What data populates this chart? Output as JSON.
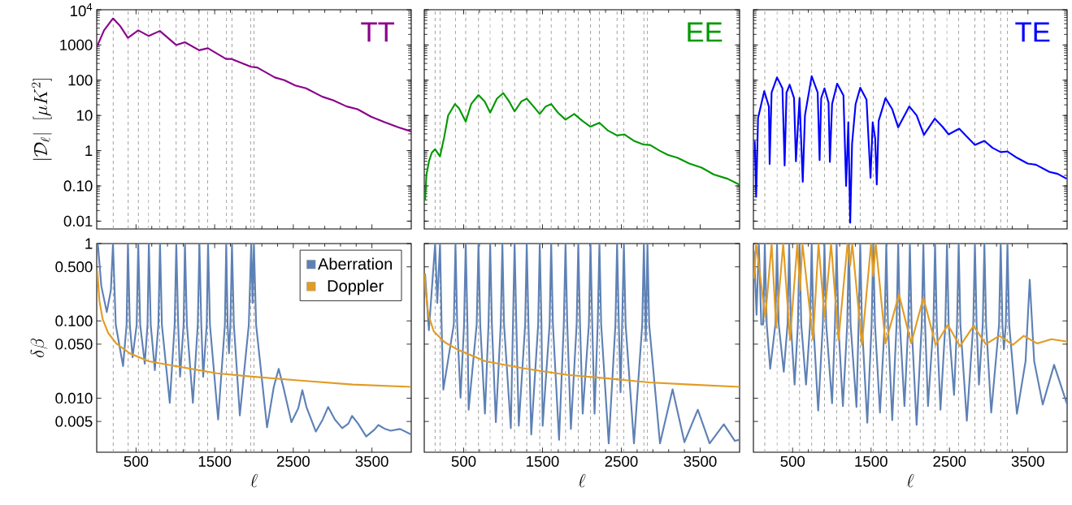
{
  "chart_data": [
    {
      "type": "line",
      "log": "y",
      "xlim": [
        0,
        4000
      ],
      "ylim": [
        0.006,
        10000
      ],
      "xticks": [
        500,
        1500,
        2500,
        3500
      ],
      "yticks": [
        0.01,
        {
          "value": 0.1,
          "label": "0.10"
        },
        1,
        10,
        100,
        1000,
        {
          "value": 10000,
          "label": "10$^{4}$"
        }
      ],
      "tick_labels": "y",
      "ylabel": "|\\mathcal{D}_\\ell|\\;\\;[\\mu K^{2}]",
      "annotations": [
        "TT"
      ],
      "series": [
        {
          "color": "#8b008b",
          "x": [
            7,
            93,
            207,
            300,
            397,
            528,
            662,
            803,
            1010,
            1121,
            1303,
            1414,
            1645,
            1717,
            1962,
            2041,
            2265,
            2386,
            2524,
            2662,
            2869,
            3007,
            3179,
            3317,
            3489,
            3662,
            3834,
            4000
          ],
          "values": [
            940,
            2600,
            5700,
            3400,
            1600,
            2600,
            1800,
            2500,
            1000,
            1200,
            710,
            810,
            400,
            400,
            240,
            230,
            120,
            100,
            71,
            59,
            34,
            27,
            18,
            15,
            9.2,
            6.4,
            4.6,
            3.5
          ]
        }
      ],
      "ref_lines": [
        {
          "axis": "x",
          "value": 210,
          "color": "#999999",
          "line_style": "dashed"
        },
        {
          "axis": "x",
          "value": 400,
          "color": "#999999",
          "line_style": "dashed"
        },
        {
          "axis": "x",
          "value": 530,
          "color": "#999999",
          "line_style": "dashed"
        },
        {
          "axis": "x",
          "value": 660,
          "color": "#999999",
          "line_style": "dashed"
        },
        {
          "axis": "x",
          "value": 800,
          "color": "#999999",
          "line_style": "dashed"
        },
        {
          "axis": "x",
          "value": 1010,
          "color": "#999999",
          "line_style": "dashed"
        },
        {
          "axis": "x",
          "value": 1120,
          "color": "#999999",
          "line_style": "dashed"
        },
        {
          "axis": "x",
          "value": 1300,
          "color": "#999999",
          "line_style": "dashed"
        },
        {
          "axis": "x",
          "value": 1410,
          "color": "#999999",
          "line_style": "dashed"
        },
        {
          "axis": "x",
          "value": 1650,
          "color": "#999999",
          "line_style": "dashed"
        },
        {
          "axis": "x",
          "value": 1720,
          "color": "#999999",
          "line_style": "dashed"
        },
        {
          "axis": "x",
          "value": 1960,
          "color": "#999999",
          "line_style": "dashed"
        },
        {
          "axis": "x",
          "value": 2000,
          "color": "#999999",
          "line_style": "dashed"
        }
      ]
    },
    {
      "type": "line",
      "log": "y",
      "xlim": [
        0,
        4000
      ],
      "ylim": [
        0.006,
        10000
      ],
      "xticks": [
        500,
        1500,
        2500,
        3500
      ],
      "yticks": [
        0.01,
        0.1,
        1,
        10,
        100,
        1000,
        10000
      ],
      "tick_labels": false,
      "annotations": [
        "EE"
      ],
      "series": [
        {
          "color": "#009900",
          "x": [
            10,
            28,
            62,
            96,
            138,
            200,
            251,
            303,
            389,
            440,
            526,
            595,
            688,
            767,
            836,
            922,
            1001,
            1077,
            1146,
            1232,
            1300,
            1386,
            1465,
            1541,
            1610,
            1696,
            1792,
            1902,
            2006,
            2109,
            2222,
            2332,
            2446,
            2539,
            2659,
            2780,
            2866,
            2986,
            3089,
            3210,
            3364,
            3519,
            3674,
            3846,
            3994
          ],
          "values": [
            0.039,
            0.21,
            0.52,
            0.88,
            1.1,
            0.69,
            2.3,
            10,
            21,
            16,
            6.7,
            21,
            38,
            25,
            12,
            30,
            43,
            25,
            13,
            25,
            30,
            18,
            11,
            18,
            21,
            12,
            7.6,
            11,
            7,
            4.8,
            6.2,
            3.7,
            2.7,
            2.9,
            1.9,
            1.5,
            1.45,
            1.0,
            0.76,
            0.63,
            0.43,
            0.33,
            0.21,
            0.16,
            0.11
          ]
        }
      ],
      "ref_lines": [
        {
          "axis": "x",
          "value": 138,
          "color": "#999999",
          "line_style": "dashed"
        },
        {
          "axis": "x",
          "value": 200,
          "color": "#999999",
          "line_style": "dashed"
        },
        {
          "axis": "x",
          "value": 396,
          "color": "#999999",
          "line_style": "dashed"
        },
        {
          "axis": "x",
          "value": 526,
          "color": "#999999",
          "line_style": "dashed"
        },
        {
          "axis": "x",
          "value": 688,
          "color": "#999999",
          "line_style": "dashed"
        },
        {
          "axis": "x",
          "value": 836,
          "color": "#999999",
          "line_style": "dashed"
        },
        {
          "axis": "x",
          "value": 991,
          "color": "#999999",
          "line_style": "dashed"
        },
        {
          "axis": "x",
          "value": 1146,
          "color": "#999999",
          "line_style": "dashed"
        },
        {
          "axis": "x",
          "value": 1300,
          "color": "#999999",
          "line_style": "dashed"
        },
        {
          "axis": "x",
          "value": 1465,
          "color": "#999999",
          "line_style": "dashed"
        },
        {
          "axis": "x",
          "value": 1610,
          "color": "#999999",
          "line_style": "dashed"
        },
        {
          "axis": "x",
          "value": 1792,
          "color": "#999999",
          "line_style": "dashed"
        },
        {
          "axis": "x",
          "value": 1954,
          "color": "#999999",
          "line_style": "dashed"
        },
        {
          "axis": "x",
          "value": 2109,
          "color": "#999999",
          "line_style": "dashed"
        },
        {
          "axis": "x",
          "value": 2222,
          "color": "#999999",
          "line_style": "dashed"
        },
        {
          "axis": "x",
          "value": 2446,
          "color": "#999999",
          "line_style": "dashed"
        },
        {
          "axis": "x",
          "value": 2532,
          "color": "#999999",
          "line_style": "dashed"
        },
        {
          "axis": "x",
          "value": 2786,
          "color": "#999999",
          "line_style": "dashed"
        },
        {
          "axis": "x",
          "value": 2831,
          "color": "#999999",
          "line_style": "dashed"
        }
      ]
    },
    {
      "type": "line",
      "log": "y",
      "xlim": [
        0,
        4000
      ],
      "ylim": [
        0.006,
        10000
      ],
      "xticks": [
        500,
        1500,
        2500,
        3500
      ],
      "yticks": [
        0.01,
        0.1,
        1,
        10,
        100,
        1000,
        10000
      ],
      "tick_labels": false,
      "annotations": [
        "TE"
      ],
      "series": [
        {
          "color": "#0000ff",
          "x": [
            17,
            35,
            59,
            138,
            197,
            207,
            232,
            301,
            370,
            398,
            422,
            463,
            518,
            542,
            588,
            629,
            657,
            743,
            819,
            844,
            864,
            906,
            958,
            975,
            1003,
            1068,
            1148,
            1182,
            1210,
            1234,
            1258,
            1303,
            1362,
            1442,
            1493,
            1521,
            1552,
            1573,
            1597,
            1684,
            1770,
            1846,
            1988,
            2081,
            2174,
            2313,
            2410,
            2489,
            2624,
            2721,
            2824,
            2945,
            3049,
            3153,
            3239,
            3360,
            3498,
            3602,
            3775,
            3879,
            3993
          ],
          "values": [
            1.9,
            0.049,
            8.4,
            49,
            18,
            0.42,
            45,
            120,
            59,
            0.38,
            45,
            74,
            31,
            0.5,
            31,
            0.13,
            10,
            130,
            45,
            0.54,
            31,
            59,
            23,
            0.48,
            21,
            80,
            37,
            0.1,
            6.4,
            0.009,
            1.6,
            21,
            61,
            28,
            0.17,
            6.4,
            2.3,
            0.11,
            7,
            31,
            15,
            4.6,
            18,
            10,
            2.8,
            8.1,
            4.8,
            2.9,
            4.2,
            2.5,
            1.45,
            1.9,
            1.2,
            0.91,
            0.95,
            0.63,
            0.43,
            0.4,
            0.25,
            0.22,
            0.16
          ]
        }
      ],
      "ref_lines": [
        {
          "axis": "x",
          "value": 145,
          "color": "#999999",
          "line_style": "dashed"
        },
        {
          "axis": "x",
          "value": 301,
          "color": "#999999",
          "line_style": "dashed"
        },
        {
          "axis": "x",
          "value": 456,
          "color": "#999999",
          "line_style": "dashed"
        },
        {
          "axis": "x",
          "value": 588,
          "color": "#999999",
          "line_style": "dashed"
        },
        {
          "axis": "x",
          "value": 743,
          "color": "#999999",
          "line_style": "dashed"
        },
        {
          "axis": "x",
          "value": 906,
          "color": "#999999",
          "line_style": "dashed"
        },
        {
          "axis": "x",
          "value": 1061,
          "color": "#999999",
          "line_style": "dashed"
        },
        {
          "axis": "x",
          "value": 1217,
          "color": "#999999",
          "line_style": "dashed"
        },
        {
          "axis": "x",
          "value": 1362,
          "color": "#999999",
          "line_style": "dashed"
        },
        {
          "axis": "x",
          "value": 1528,
          "color": "#999999",
          "line_style": "dashed"
        },
        {
          "axis": "x",
          "value": 1694,
          "color": "#999999",
          "line_style": "dashed"
        },
        {
          "axis": "x",
          "value": 1846,
          "color": "#999999",
          "line_style": "dashed"
        },
        {
          "axis": "x",
          "value": 1995,
          "color": "#999999",
          "line_style": "dashed"
        },
        {
          "axis": "x",
          "value": 2167,
          "color": "#999999",
          "line_style": "dashed"
        },
        {
          "axis": "x",
          "value": 2316,
          "color": "#999999",
          "line_style": "dashed"
        },
        {
          "axis": "x",
          "value": 2468,
          "color": "#999999",
          "line_style": "dashed"
        },
        {
          "axis": "x",
          "value": 2617,
          "color": "#999999",
          "line_style": "dashed"
        },
        {
          "axis": "x",
          "value": 2824,
          "color": "#999999",
          "line_style": "dashed"
        },
        {
          "axis": "x",
          "value": 2945,
          "color": "#999999",
          "line_style": "dashed"
        },
        {
          "axis": "x",
          "value": 3153,
          "color": "#999999",
          "line_style": "dashed"
        },
        {
          "axis": "x",
          "value": 3239,
          "color": "#999999",
          "line_style": "dashed"
        }
      ]
    },
    {
      "type": "line",
      "log": "y",
      "xlim": [
        0,
        4000
      ],
      "ylim": [
        0.002,
        1
      ],
      "xticks": [
        500,
        1500,
        2500,
        3500
      ],
      "yticks": [
        0.005,
        {
          "value": 0.01,
          "label": "0.010"
        },
        {
          "value": 0.05,
          "label": "0.050"
        },
        {
          "value": 0.1,
          "label": "0.100"
        },
        {
          "value": 0.5,
          "label": "0.500"
        },
        1
      ],
      "xlabel": "\\ell",
      "ylabel": "\\delta\\beta",
      "legend": "top right",
      "series": [
        {
          "name": "Aberration",
          "color": "#5e81b5",
          "x": [
            14,
            59,
            128,
            180,
            207,
            242,
            335,
            380,
            397,
            421,
            456,
            508,
            528,
            553,
            611,
            646,
            663,
            687,
            739,
            784,
            805,
            829,
            929,
            991,
            1012,
            1036,
            1060,
            1105,
            1122,
            1147,
            1223,
            1285,
            1306,
            1330,
            1354,
            1399,
            1416,
            1440,
            1544,
            1630,
            1647,
            1665,
            1682,
            1700,
            1720,
            1744,
            1820,
            1934,
            1965,
            1982,
            1999,
            2027,
            2166,
            2252,
            2314,
            2373,
            2476,
            2563,
            2615,
            2667,
            2787,
            2874,
            2943,
            3029,
            3122,
            3202,
            3247,
            3323,
            3427,
            3530,
            3582,
            3668,
            3737,
            3858,
            3996
          ],
          "values": [
            1,
            0.28,
            0.13,
            0.25,
            1,
            0.089,
            0.026,
            0.089,
            1,
            0.089,
            0.034,
            0.089,
            1,
            0.089,
            0.028,
            0.089,
            1,
            0.089,
            0.023,
            0.089,
            1,
            0.089,
            0.0087,
            0.089,
            1,
            0.089,
            0.019,
            0.089,
            1,
            0.089,
            0.0087,
            0.089,
            1,
            0.089,
            0.019,
            0.089,
            1,
            0.089,
            0.0053,
            0.089,
            1,
            0.089,
            0.038,
            0.089,
            1,
            0.089,
            0.006,
            0.089,
            1,
            0.17,
            1,
            0.089,
            0.0042,
            0.014,
            0.024,
            0.014,
            0.0049,
            0.0074,
            0.0127,
            0.0077,
            0.0037,
            0.0053,
            0.0077,
            0.0053,
            0.0041,
            0.0047,
            0.0059,
            0.0047,
            0.0032,
            0.0039,
            0.0045,
            0.004,
            0.0038,
            0.004,
            0.0034
          ]
        },
        {
          "name": "Doppler",
          "color": "#e19c24",
          "x": [
            7,
            35,
            76,
            145,
            249,
            421,
            663,
            1008,
            1526,
            1975,
            2563,
            3253,
            3996
          ],
          "values": [
            0.45,
            0.18,
            0.105,
            0.07,
            0.051,
            0.038,
            0.03,
            0.026,
            0.021,
            0.019,
            0.017,
            0.015,
            0.014
          ]
        }
      ],
      "ref_lines": [
        {
          "axis": "x",
          "value": 210,
          "color": "#999999",
          "line_style": "dashed"
        },
        {
          "axis": "x",
          "value": 400,
          "color": "#999999",
          "line_style": "dashed"
        },
        {
          "axis": "x",
          "value": 530,
          "color": "#999999",
          "line_style": "dashed"
        },
        {
          "axis": "x",
          "value": 660,
          "color": "#999999",
          "line_style": "dashed"
        },
        {
          "axis": "x",
          "value": 800,
          "color": "#999999",
          "line_style": "dashed"
        },
        {
          "axis": "x",
          "value": 1010,
          "color": "#999999",
          "line_style": "dashed"
        },
        {
          "axis": "x",
          "value": 1120,
          "color": "#999999",
          "line_style": "dashed"
        },
        {
          "axis": "x",
          "value": 1300,
          "color": "#999999",
          "line_style": "dashed"
        },
        {
          "axis": "x",
          "value": 1410,
          "color": "#999999",
          "line_style": "dashed"
        },
        {
          "axis": "x",
          "value": 1650,
          "color": "#999999",
          "line_style": "dashed"
        },
        {
          "axis": "x",
          "value": 1720,
          "color": "#999999",
          "line_style": "dashed"
        },
        {
          "axis": "x",
          "value": 1960,
          "color": "#999999",
          "line_style": "dashed"
        },
        {
          "axis": "x",
          "value": 2000,
          "color": "#999999",
          "line_style": "dashed"
        }
      ]
    },
    {
      "type": "line",
      "log": "y",
      "xlim": [
        0,
        4000
      ],
      "ylim": [
        0.002,
        1
      ],
      "xticks": [
        500,
        1500,
        2500,
        3500
      ],
      "yticks": [
        0.005,
        0.01,
        0.05,
        0.1,
        0.5,
        1
      ],
      "tick_labels": "x",
      "xlabel": "\\ell",
      "series": [
        {
          "color": "#5e81b5",
          "x": [
            10,
            59,
            138,
            165,
            200,
            220,
            242,
            375,
            396,
            418,
            460,
            505,
            526,
            548,
            563,
            665,
            688,
            710,
            770,
            815,
            836,
            858,
            908,
            970,
            991,
            1012,
            1098,
            1125,
            1146,
            1168,
            1199,
            1280,
            1300,
            1322,
            1357,
            1445,
            1465,
            1487,
            1502,
            1590,
            1610,
            1632,
            1710,
            1770,
            1792,
            1814,
            1860,
            1933,
            1954,
            1976,
            2010,
            2088,
            2109,
            2131,
            2160,
            2200,
            2222,
            2244,
            2340,
            2425,
            2446,
            2468,
            2490,
            2510,
            2532,
            2554,
            2660,
            2765,
            2786,
            2810,
            2831,
            2853,
            2990,
            3150,
            3300,
            3470,
            3620,
            3800,
            3940,
            4000
          ],
          "values": [
            0.41,
            0.076,
            1,
            0.17,
            1,
            0.09,
            0.0129,
            0.09,
            1,
            0.09,
            0.0101,
            0.09,
            1,
            0.09,
            0.0071,
            0.09,
            1,
            0.09,
            0.0063,
            0.09,
            1,
            0.09,
            0.0049,
            0.09,
            1,
            0.09,
            0.0041,
            0.09,
            1,
            0.09,
            0.0044,
            0.09,
            1,
            0.09,
            0.0034,
            0.09,
            1,
            0.09,
            0.0044,
            0.09,
            1,
            0.09,
            0.0029,
            0.09,
            1,
            0.09,
            0.004,
            0.09,
            1,
            0.09,
            0.0063,
            0.09,
            1,
            0.09,
            0.0063,
            0.09,
            1,
            0.09,
            0.0026,
            0.09,
            1,
            0.09,
            0.0119,
            0.09,
            1,
            0.09,
            0.0026,
            0.09,
            1,
            0.055,
            1,
            0.09,
            0.0026,
            0.013,
            0.0027,
            0.0071,
            0.0026,
            0.0046,
            0.0028,
            0.0029
          ]
        },
        {
          "color": "#e19c24",
          "x": [
            3,
            17,
            52,
            121,
            259,
            432,
            777,
            1295,
            1813,
            2331,
            2850,
            3368,
            4000
          ],
          "values": [
            0.41,
            0.25,
            0.12,
            0.073,
            0.053,
            0.042,
            0.03,
            0.024,
            0.02,
            0.018,
            0.016,
            0.015,
            0.014
          ]
        }
      ],
      "ref_lines": [
        {
          "axis": "x",
          "value": 138,
          "color": "#999999",
          "line_style": "dashed"
        },
        {
          "axis": "x",
          "value": 200,
          "color": "#999999",
          "line_style": "dashed"
        },
        {
          "axis": "x",
          "value": 396,
          "color": "#999999",
          "line_style": "dashed"
        },
        {
          "axis": "x",
          "value": 526,
          "color": "#999999",
          "line_style": "dashed"
        },
        {
          "axis": "x",
          "value": 688,
          "color": "#999999",
          "line_style": "dashed"
        },
        {
          "axis": "x",
          "value": 836,
          "color": "#999999",
          "line_style": "dashed"
        },
        {
          "axis": "x",
          "value": 991,
          "color": "#999999",
          "line_style": "dashed"
        },
        {
          "axis": "x",
          "value": 1146,
          "color": "#999999",
          "line_style": "dashed"
        },
        {
          "axis": "x",
          "value": 1300,
          "color": "#999999",
          "line_style": "dashed"
        },
        {
          "axis": "x",
          "value": 1465,
          "color": "#999999",
          "line_style": "dashed"
        },
        {
          "axis": "x",
          "value": 1610,
          "color": "#999999",
          "line_style": "dashed"
        },
        {
          "axis": "x",
          "value": 1792,
          "color": "#999999",
          "line_style": "dashed"
        },
        {
          "axis": "x",
          "value": 1954,
          "color": "#999999",
          "line_style": "dashed"
        },
        {
          "axis": "x",
          "value": 2109,
          "color": "#999999",
          "line_style": "dashed"
        },
        {
          "axis": "x",
          "value": 2222,
          "color": "#999999",
          "line_style": "dashed"
        },
        {
          "axis": "x",
          "value": 2446,
          "color": "#999999",
          "line_style": "dashed"
        },
        {
          "axis": "x",
          "value": 2532,
          "color": "#999999",
          "line_style": "dashed"
        },
        {
          "axis": "x",
          "value": 2786,
          "color": "#999999",
          "line_style": "dashed"
        },
        {
          "axis": "x",
          "value": 2831,
          "color": "#999999",
          "line_style": "dashed"
        }
      ]
    },
    {
      "type": "line",
      "log": "y",
      "xlim": [
        0,
        4000
      ],
      "ylim": [
        0.002,
        1
      ],
      "xticks": [
        500,
        1500,
        2500,
        3500
      ],
      "yticks": [
        0.005,
        0.01,
        0.05,
        0.1,
        0.5,
        1
      ],
      "tick_labels": "x",
      "xlabel": "\\ell",
      "series": [
        {
          "color": "#5e81b5",
          "x": [
            7,
            40,
            69,
            100,
            125,
            145,
            170,
            214,
            280,
            301,
            323,
            387,
            435,
            456,
            478,
            525,
            567,
            588,
            610,
            671,
            722,
            743,
            765,
            826,
            885,
            906,
            928,
            1003,
            1040,
            1061,
            1083,
            1141,
            1196,
            1217,
            1239,
            1314,
            1341,
            1362,
            1384,
            1452,
            1507,
            1528,
            1550,
            1614,
            1673,
            1694,
            1716,
            1770,
            1825,
            1846,
            1868,
            1926,
            1974,
            1995,
            2017,
            2081,
            2146,
            2167,
            2189,
            2226,
            2295,
            2316,
            2338,
            2385,
            2447,
            2468,
            2490,
            2558,
            2596,
            2617,
            2639,
            2721,
            2803,
            2824,
            2846,
            2876,
            2924,
            2945,
            2967,
            3032,
            3132,
            3153,
            3175,
            3194,
            3218,
            3239,
            3261,
            3360,
            3470,
            3523,
            3580,
            3689,
            3834,
            4000
          ],
          "values": [
            0.8,
            0.12,
            1,
            0.09,
            0.09,
            1,
            0.09,
            0.024,
            0.09,
            1,
            0.09,
            0.022,
            0.09,
            1,
            0.09,
            0.015,
            0.09,
            1,
            0.09,
            0.015,
            0.09,
            1,
            0.09,
            0.0069,
            0.09,
            1,
            0.09,
            0.0086,
            0.09,
            1,
            0.09,
            0.0079,
            0.09,
            1,
            0.09,
            0.0077,
            0.09,
            1,
            0.09,
            0.0048,
            0.09,
            1,
            0.09,
            0.0065,
            0.09,
            1,
            0.09,
            0.0052,
            0.09,
            1,
            0.09,
            0.0079,
            0.09,
            1,
            0.09,
            0.0045,
            0.09,
            1,
            0.09,
            0.0079,
            0.09,
            1,
            0.09,
            0.0071,
            0.09,
            1,
            0.09,
            0.011,
            0.09,
            1,
            0.09,
            0.0051,
            0.09,
            1,
            0.09,
            0.015,
            0.09,
            1,
            0.09,
            0.0065,
            0.09,
            1,
            0.09,
            0.043,
            0.09,
            1,
            0.09,
            0.0063,
            0.03,
            0.34,
            0.03,
            0.0083,
            0.027,
            0.0083
          ]
        },
        {
          "color": "#e19c24",
          "x": [
            7,
            35,
            152,
            232,
            290,
            380,
            467,
            560,
            594,
            625,
            760,
            830,
            906,
            990,
            1085,
            1200,
            1234,
            1260,
            1383,
            1500,
            1528,
            1560,
            1684,
            1856,
            2012,
            2167,
            2323,
            2479,
            2634,
            2807,
            2963,
            3136,
            3308,
            3447,
            3619,
            3800,
            4000
          ],
          "values": [
            0.35,
            1,
            0.11,
            1,
            0.082,
            1,
            0.057,
            1,
            0.25,
            1,
            0.057,
            1,
            0.11,
            1,
            0.057,
            1,
            0.52,
            1,
            0.049,
            1,
            0.38,
            1,
            0.051,
            0.22,
            0.051,
            0.2,
            0.049,
            0.089,
            0.047,
            0.086,
            0.05,
            0.064,
            0.049,
            0.064,
            0.051,
            0.058,
            0.054
          ]
        }
      ],
      "ref_lines": [
        {
          "axis": "x",
          "value": 145,
          "color": "#999999",
          "line_style": "dashed"
        },
        {
          "axis": "x",
          "value": 301,
          "color": "#999999",
          "line_style": "dashed"
        },
        {
          "axis": "x",
          "value": 456,
          "color": "#999999",
          "line_style": "dashed"
        },
        {
          "axis": "x",
          "value": 588,
          "color": "#999999",
          "line_style": "dashed"
        },
        {
          "axis": "x",
          "value": 743,
          "color": "#999999",
          "line_style": "dashed"
        },
        {
          "axis": "x",
          "value": 906,
          "color": "#999999",
          "line_style": "dashed"
        },
        {
          "axis": "x",
          "value": 1061,
          "color": "#999999",
          "line_style": "dashed"
        },
        {
          "axis": "x",
          "value": 1217,
          "color": "#999999",
          "line_style": "dashed"
        },
        {
          "axis": "x",
          "value": 1362,
          "color": "#999999",
          "line_style": "dashed"
        },
        {
          "axis": "x",
          "value": 1528,
          "color": "#999999",
          "line_style": "dashed"
        },
        {
          "axis": "x",
          "value": 1694,
          "color": "#999999",
          "line_style": "dashed"
        },
        {
          "axis": "x",
          "value": 1846,
          "color": "#999999",
          "line_style": "dashed"
        },
        {
          "axis": "x",
          "value": 1995,
          "color": "#999999",
          "line_style": "dashed"
        },
        {
          "axis": "x",
          "value": 2167,
          "color": "#999999",
          "line_style": "dashed"
        },
        {
          "axis": "x",
          "value": 2316,
          "color": "#999999",
          "line_style": "dashed"
        },
        {
          "axis": "x",
          "value": 2468,
          "color": "#999999",
          "line_style": "dashed"
        },
        {
          "axis": "x",
          "value": 2617,
          "color": "#999999",
          "line_style": "dashed"
        },
        {
          "axis": "x",
          "value": 2824,
          "color": "#999999",
          "line_style": "dashed"
        },
        {
          "axis": "x",
          "value": 2945,
          "color": "#999999",
          "line_style": "dashed"
        },
        {
          "axis": "x",
          "value": 3153,
          "color": "#999999",
          "line_style": "dashed"
        },
        {
          "axis": "x",
          "value": 3239,
          "color": "#999999",
          "line_style": "dashed"
        }
      ]
    }
  ]
}
